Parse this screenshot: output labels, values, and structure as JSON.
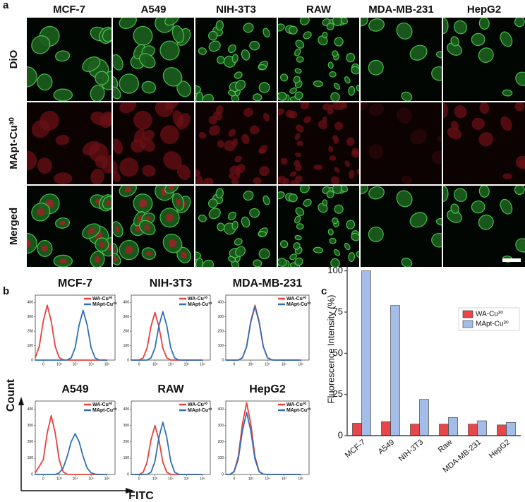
{
  "panel_a": {
    "label": "a",
    "columns": [
      "MCF-7",
      "A549",
      "NIH-3T3",
      "RAW",
      "MDA-MB-231",
      "HepG2"
    ],
    "rows": [
      "DiO",
      "MApt-Cu³⁰",
      "Merged"
    ]
  },
  "panel_b": {
    "label": "b",
    "y_axis_label": "Count",
    "x_axis_label": "FITC"
  },
  "panel_c": {
    "label": "c"
  },
  "chart_data": [
    {
      "type": "line",
      "title": "MCF-7",
      "legend": "upper right",
      "x": [
        -0.5,
        -0.25,
        0,
        0.25,
        0.5,
        0.75,
        1,
        1.25,
        1.5,
        1.75,
        2,
        2.25,
        2.5,
        2.75,
        3,
        3.25,
        3.5,
        4
      ],
      "series": [
        {
          "name": "WA-Cu³⁰",
          "color": "#e8403a",
          "values": [
            17,
            95,
            269,
            380,
            269,
            95,
            17,
            2,
            0,
            0,
            0,
            0,
            0,
            0,
            0,
            0,
            0,
            0
          ]
        },
        {
          "name": "MApt-Cu³⁰",
          "color": "#2f6fb6",
          "values": [
            0,
            0,
            0,
            0,
            0,
            0,
            0,
            0,
            1,
            15,
            86,
            244,
            345,
            244,
            86,
            15,
            1,
            0
          ]
        }
      ],
      "xlim": [
        -0.5,
        4.5
      ],
      "ylim": [
        0,
        450
      ],
      "xticks": [
        {
          "value": 0,
          "label": "0"
        },
        {
          "value": 1,
          "label": "10³"
        },
        {
          "value": 2,
          "label": "10⁴"
        },
        {
          "value": 3,
          "label": "10⁵"
        },
        {
          "value": 4,
          "label": "10⁶"
        }
      ],
      "yticks": [
        0,
        100,
        200,
        300,
        400
      ]
    },
    {
      "type": "line",
      "title": "NIH-3T3",
      "legend": "upper right",
      "x": [
        -0.5,
        -0.25,
        0,
        0.25,
        0.5,
        0.75,
        1,
        1.25,
        1.5,
        1.75,
        2,
        2.25,
        2.5,
        2.75,
        3,
        3.25,
        3.5,
        4
      ],
      "series": [
        {
          "name": "WA-Cu³⁰",
          "color": "#e8403a",
          "values": [
            0,
            0,
            0,
            15,
            83,
            233,
            330,
            233,
            83,
            15,
            1,
            0,
            0,
            0,
            0,
            0,
            0,
            0
          ]
        },
        {
          "name": "MApt-Cu³⁰",
          "color": "#2f6fb6",
          "values": [
            0,
            0,
            0,
            0,
            0,
            15,
            84,
            237,
            335,
            237,
            84,
            15,
            1,
            0,
            0,
            0,
            0,
            0
          ]
        }
      ],
      "xlim": [
        -0.5,
        4.5
      ],
      "ylim": [
        0,
        450
      ],
      "xticks": [
        {
          "value": 0,
          "label": "0"
        },
        {
          "value": 1,
          "label": "10³"
        },
        {
          "value": 2,
          "label": "10⁴"
        },
        {
          "value": 3,
          "label": "10⁵"
        },
        {
          "value": 4,
          "label": "10⁶"
        }
      ],
      "yticks": [
        0,
        100,
        200,
        300,
        400
      ]
    },
    {
      "type": "line",
      "title": "MDA-MB-231",
      "legend": "upper right",
      "x": [
        -0.5,
        -0.25,
        0,
        0.25,
        0.5,
        0.75,
        1,
        1.25,
        1.5,
        1.75,
        2,
        2.25,
        2.5,
        2.75,
        3,
        3.25,
        3.5,
        4
      ],
      "series": [
        {
          "name": "WA-Cu³⁰",
          "color": "#e8403a",
          "values": [
            0,
            0,
            0,
            0,
            17,
            95,
            269,
            380,
            269,
            95,
            17,
            2,
            0,
            0,
            0,
            0,
            0,
            0
          ]
        },
        {
          "name": "MApt-Cu³⁰",
          "color": "#2f6fb6",
          "values": [
            0,
            0,
            0,
            0,
            16,
            93,
            262,
            370,
            262,
            93,
            16,
            1,
            0,
            0,
            0,
            0,
            0,
            0
          ]
        }
      ],
      "xlim": [
        -0.5,
        4.5
      ],
      "ylim": [
        0,
        450
      ],
      "xticks": [
        {
          "value": 0,
          "label": "0"
        },
        {
          "value": 1,
          "label": "10³"
        },
        {
          "value": 2,
          "label": "10⁴"
        },
        {
          "value": 3,
          "label": "10⁵"
        },
        {
          "value": 4,
          "label": "10⁶"
        }
      ],
      "yticks": [
        0,
        100,
        200,
        300,
        400
      ]
    },
    {
      "type": "line",
      "title": "A549",
      "legend": "upper right",
      "x": [
        -0.5,
        -0.25,
        0,
        0.25,
        0.5,
        0.75,
        1,
        1.25,
        1.5,
        1.75,
        2,
        2.25,
        2.5,
        2.75,
        3,
        3.25,
        3.5,
        4
      ],
      "series": [
        {
          "name": "WA-Cu³⁰",
          "color": "#e8403a",
          "values": [
            10,
            50,
            90,
            255,
            360,
            255,
            90,
            16,
            1,
            0,
            0,
            0,
            0,
            0,
            0,
            0,
            0,
            0
          ]
        },
        {
          "name": "MApt-Cu³⁰",
          "color": "#2f6fb6",
          "values": [
            0,
            0,
            0,
            0,
            0,
            0,
            10,
            40,
            110,
            200,
            250,
            200,
            110,
            40,
            10,
            2,
            0,
            0
          ]
        }
      ],
      "xlim": [
        -0.5,
        4.5
      ],
      "ylim": [
        0,
        450
      ],
      "xticks": [
        {
          "value": 0,
          "label": "0"
        },
        {
          "value": 1,
          "label": "10³"
        },
        {
          "value": 2,
          "label": "10⁴"
        },
        {
          "value": 3,
          "label": "10⁵"
        },
        {
          "value": 4,
          "label": "10⁶"
        }
      ],
      "yticks": [
        0,
        100,
        200,
        300,
        400
      ]
    },
    {
      "type": "line",
      "title": "RAW",
      "legend": "upper right",
      "x": [
        -0.5,
        -0.25,
        0,
        0.25,
        0.5,
        0.75,
        1,
        1.25,
        1.5,
        1.75,
        2,
        2.25,
        2.5,
        2.75,
        3,
        3.25,
        3.5,
        4
      ],
      "series": [
        {
          "name": "WA-Cu³⁰",
          "color": "#e8403a",
          "values": [
            0,
            0,
            0,
            13,
            75,
            212,
            300,
            212,
            75,
            13,
            1,
            0,
            0,
            0,
            0,
            0,
            0,
            0
          ]
        },
        {
          "name": "MApt-Cu³⁰",
          "color": "#2f6fb6",
          "values": [
            0,
            0,
            0,
            0,
            0,
            14,
            80,
            226,
            320,
            226,
            80,
            14,
            1,
            0,
            0,
            0,
            0,
            0
          ]
        }
      ],
      "xlim": [
        -0.5,
        4.5
      ],
      "ylim": [
        0,
        450
      ],
      "xticks": [
        {
          "value": 0,
          "label": "0"
        },
        {
          "value": 1,
          "label": "10³"
        },
        {
          "value": 2,
          "label": "10⁴"
        },
        {
          "value": 3,
          "label": "10⁵"
        },
        {
          "value": 4,
          "label": "10⁶"
        }
      ],
      "yticks": [
        0,
        100,
        200,
        300,
        400
      ]
    },
    {
      "type": "line",
      "title": "HepG2",
      "legend": "upper right",
      "x": [
        -0.5,
        -0.25,
        0,
        0.25,
        0.5,
        0.75,
        1,
        1.25,
        1.5,
        1.75,
        2,
        2.25,
        2.5,
        2.75,
        3,
        3.25,
        3.5,
        4
      ],
      "series": [
        {
          "name": "WA-Cu³⁰",
          "color": "#e8403a",
          "values": [
            0,
            0,
            19,
            110,
            311,
            440,
            311,
            110,
            19,
            2,
            0,
            0,
            0,
            0,
            0,
            0,
            0,
            0
          ]
        },
        {
          "name": "MApt-Cu³⁰",
          "color": "#2f6fb6",
          "values": [
            0,
            0,
            17,
            95,
            269,
            380,
            269,
            95,
            17,
            2,
            0,
            0,
            0,
            0,
            0,
            0,
            0,
            0
          ]
        }
      ],
      "xlim": [
        -0.5,
        4.5
      ],
      "ylim": [
        0,
        450
      ],
      "xticks": [
        {
          "value": 0,
          "label": "0"
        },
        {
          "value": 1,
          "label": "10³"
        },
        {
          "value": 2,
          "label": "10⁴"
        },
        {
          "value": 3,
          "label": "10⁵"
        },
        {
          "value": 4,
          "label": "10⁶"
        }
      ],
      "yticks": [
        0,
        100,
        200,
        300,
        400
      ]
    },
    {
      "type": "bar",
      "y_label": "Fluorescence Intensity (%)",
      "legend": "upper right",
      "categories": [
        "MCF-7",
        "A549",
        "NIH-3T3",
        "Raw",
        "MDA-MB-231",
        "HepG2"
      ],
      "series": [
        {
          "name": "WA-Cu³⁰",
          "color": "#e8474a",
          "values": [
            7.5,
            8.5,
            7,
            7,
            7,
            6.5
          ]
        },
        {
          "name": "MApt-Cu³⁰",
          "color": "#a4bde8",
          "values": [
            100,
            79,
            22,
            11,
            9,
            8
          ]
        }
      ],
      "ylim": [
        0,
        105
      ],
      "yticks": [
        0,
        25,
        50,
        75,
        100
      ]
    }
  ]
}
